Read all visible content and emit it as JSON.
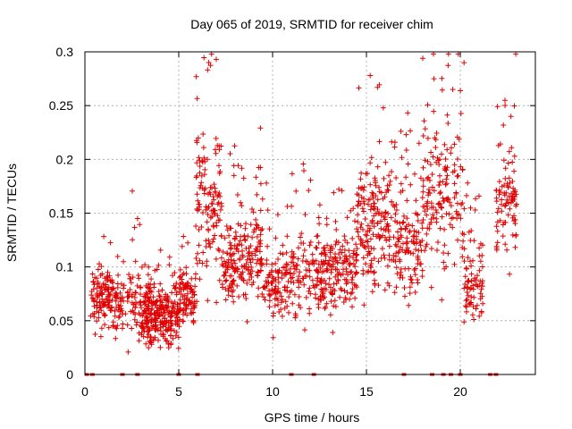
{
  "chart_data": {
    "type": "scatter",
    "title": "Day 065 of 2019, SRMTID for receiver chim",
    "xlabel": "GPS time / hours",
    "ylabel": "SRMTID / TECUs",
    "xlim": [
      0,
      24
    ],
    "ylim": [
      0,
      0.3
    ],
    "xticks": [
      0,
      5,
      10,
      15,
      20
    ],
    "xtick_labels": [
      "0",
      "5",
      "10",
      "15",
      "20"
    ],
    "yticks": [
      0,
      0.05,
      0.1,
      0.15,
      0.2,
      0.25,
      0.3
    ],
    "ytick_labels": [
      "0",
      "0.05",
      "0.1",
      "0.15",
      "0.2",
      "0.25",
      "0.3"
    ],
    "grid": true,
    "marker": "+",
    "series": [
      {
        "name": "SRMTID",
        "color": "#e00000",
        "segments": [
          {
            "start": 0.3,
            "end": 2.0,
            "base": 0.068,
            "spread": 0.018,
            "count": 150
          },
          {
            "start": 2.0,
            "end": 3.0,
            "base": 0.065,
            "spread": 0.02,
            "count": 60
          },
          {
            "start": 3.0,
            "end": 5.0,
            "base": 0.055,
            "spread": 0.016,
            "count": 280
          },
          {
            "start": 5.0,
            "end": 5.9,
            "base": 0.07,
            "spread": 0.016,
            "count": 90
          },
          {
            "start": 5.9,
            "end": 7.3,
            "base": 0.16,
            "spread": 0.045,
            "count": 130
          },
          {
            "start": 7.3,
            "end": 9.5,
            "base": 0.11,
            "spread": 0.025,
            "count": 200
          },
          {
            "start": 9.5,
            "end": 11.0,
            "base": 0.085,
            "spread": 0.022,
            "count": 110
          },
          {
            "start": 11.0,
            "end": 12.3,
            "base": 0.09,
            "spread": 0.024,
            "count": 80
          },
          {
            "start": 12.3,
            "end": 14.5,
            "base": 0.095,
            "spread": 0.022,
            "count": 200
          },
          {
            "start": 14.5,
            "end": 16.5,
            "base": 0.14,
            "spread": 0.035,
            "count": 180
          },
          {
            "start": 16.5,
            "end": 18.0,
            "base": 0.12,
            "spread": 0.03,
            "count": 130
          },
          {
            "start": 18.0,
            "end": 19.5,
            "base": 0.17,
            "spread": 0.045,
            "count": 120
          },
          {
            "start": 19.5,
            "end": 20.2,
            "base": 0.17,
            "spread": 0.05,
            "count": 40
          },
          {
            "start": 20.2,
            "end": 21.2,
            "base": 0.085,
            "spread": 0.022,
            "count": 80
          },
          {
            "start": 21.9,
            "end": 23.0,
            "base": 0.16,
            "spread": 0.03,
            "count": 90
          }
        ],
        "peaks": [
          {
            "x": 6.6,
            "y": 0.29
          },
          {
            "x": 7.0,
            "y": 0.293
          },
          {
            "x": 15.2,
            "y": 0.278
          },
          {
            "x": 18.0,
            "y": 0.294
          },
          {
            "x": 18.6,
            "y": 0.275
          },
          {
            "x": 19.6,
            "y": 0.265
          },
          {
            "x": 22.7,
            "y": 0.24
          }
        ]
      }
    ],
    "gap_markers_x": [
      0.1,
      0.4,
      2.0,
      2.8,
      5.0,
      6.0,
      11.0,
      12.2,
      17.0,
      18.5,
      19.1,
      19.5,
      20.0,
      21.6,
      21.9
    ]
  }
}
